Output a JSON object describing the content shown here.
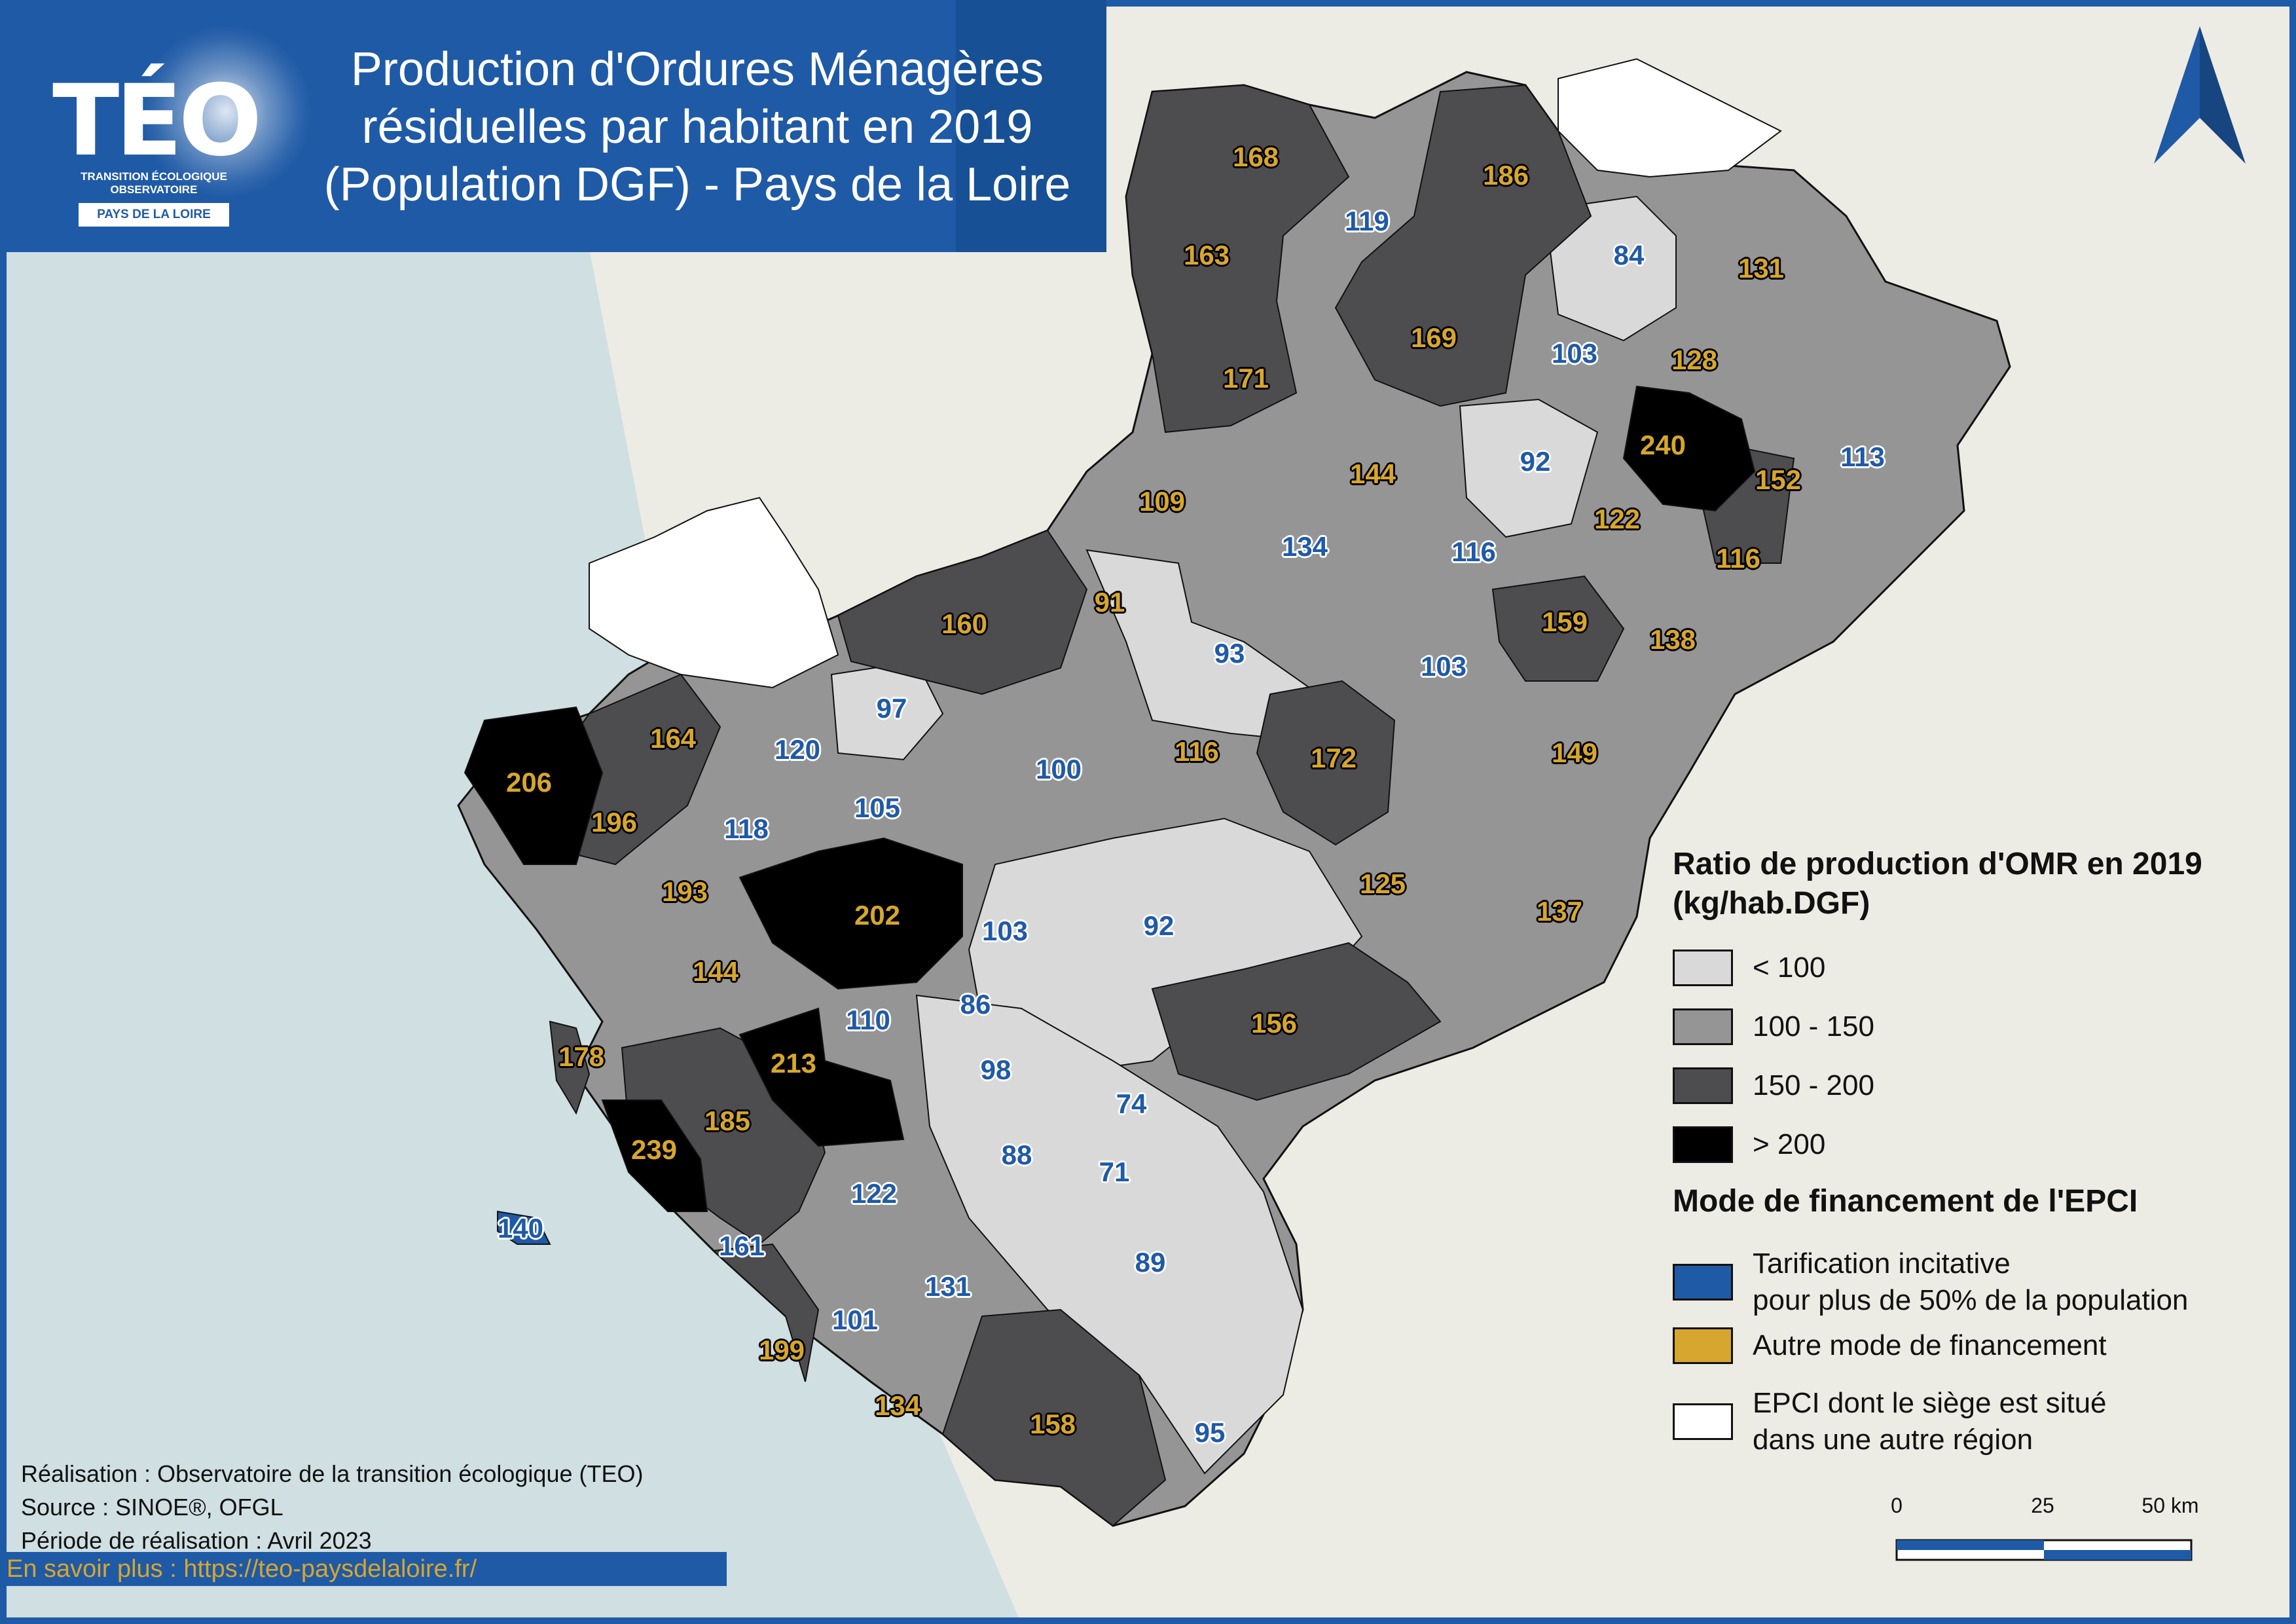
{
  "title": {
    "line1": "Production d'Ordures Ménagères",
    "line2": "résiduelles par habitant en 2019",
    "line3": "(Population DGF) - Pays de la Loire"
  },
  "logo": {
    "name": "TÉO",
    "subtitle_line1": "TRANSITION ÉCOLOGIQUE",
    "subtitle_line2": "OBSERVATOIRE",
    "region": "PAYS DE LA LOIRE"
  },
  "north_arrow_icon": "north-arrow-icon",
  "legend": {
    "ratio_title_line1": "Ratio de production d'OMR en 2019",
    "ratio_title_line2": "(kg/hab.DGF)",
    "classes": [
      {
        "label": "< 100",
        "color": "#d9d9d9"
      },
      {
        "label": "100 - 150",
        "color": "#959595"
      },
      {
        "label": "150 - 200",
        "color": "#4d4d4f"
      },
      {
        "label": "> 200",
        "color": "#000000"
      }
    ],
    "mode_title": "Mode de financement de l'EPCI",
    "modes": [
      {
        "line1": "Tarification incitative",
        "line2": "pour plus de 50% de la population",
        "color": "#1f5aa6"
      },
      {
        "line1": "Autre mode de financement",
        "line2": "",
        "color": "#d7a62e"
      },
      {
        "line1": "EPCI dont le siège est situé",
        "line2": "dans une autre région",
        "color": "#ffffff"
      }
    ]
  },
  "map_values": [
    {
      "value": "168",
      "mode": "autre"
    },
    {
      "value": "186",
      "mode": "autre"
    },
    {
      "value": "119",
      "mode": "incitative"
    },
    {
      "value": "163",
      "mode": "autre"
    },
    {
      "value": "84",
      "mode": "incitative"
    },
    {
      "value": "131",
      "mode": "autre"
    },
    {
      "value": "169",
      "mode": "autre"
    },
    {
      "value": "171",
      "mode": "autre"
    },
    {
      "value": "103",
      "mode": "incitative"
    },
    {
      "value": "128",
      "mode": "autre"
    },
    {
      "value": "240",
      "mode": "autre"
    },
    {
      "value": "92",
      "mode": "incitative"
    },
    {
      "value": "113",
      "mode": "incitative"
    },
    {
      "value": "152",
      "mode": "autre"
    },
    {
      "value": "144",
      "mode": "autre"
    },
    {
      "value": "109",
      "mode": "autre"
    },
    {
      "value": "122",
      "mode": "autre"
    },
    {
      "value": "134",
      "mode": "incitative"
    },
    {
      "value": "116",
      "mode": "incitative"
    },
    {
      "value": "116",
      "mode": "autre"
    },
    {
      "value": "91",
      "mode": "autre"
    },
    {
      "value": "160",
      "mode": "autre"
    },
    {
      "value": "159",
      "mode": "autre"
    },
    {
      "value": "138",
      "mode": "autre"
    },
    {
      "value": "93",
      "mode": "incitative"
    },
    {
      "value": "103",
      "mode": "incitative"
    },
    {
      "value": "97",
      "mode": "incitative"
    },
    {
      "value": "164",
      "mode": "autre"
    },
    {
      "value": "120",
      "mode": "incitative"
    },
    {
      "value": "100",
      "mode": "incitative"
    },
    {
      "value": "116",
      "mode": "autre"
    },
    {
      "value": "172",
      "mode": "autre"
    },
    {
      "value": "149",
      "mode": "autre"
    },
    {
      "value": "206",
      "mode": "autre"
    },
    {
      "value": "196",
      "mode": "autre"
    },
    {
      "value": "118",
      "mode": "incitative"
    },
    {
      "value": "105",
      "mode": "incitative"
    },
    {
      "value": "125",
      "mode": "autre"
    },
    {
      "value": "193",
      "mode": "autre"
    },
    {
      "value": "202",
      "mode": "autre"
    },
    {
      "value": "103",
      "mode": "incitative"
    },
    {
      "value": "92",
      "mode": "incitative"
    },
    {
      "value": "137",
      "mode": "autre"
    },
    {
      "value": "144",
      "mode": "autre"
    },
    {
      "value": "86",
      "mode": "incitative"
    },
    {
      "value": "110",
      "mode": "incitative"
    },
    {
      "value": "156",
      "mode": "autre"
    },
    {
      "value": "178",
      "mode": "autre"
    },
    {
      "value": "213",
      "mode": "autre"
    },
    {
      "value": "98",
      "mode": "incitative"
    },
    {
      "value": "74",
      "mode": "incitative"
    },
    {
      "value": "185",
      "mode": "autre"
    },
    {
      "value": "239",
      "mode": "autre"
    },
    {
      "value": "88",
      "mode": "incitative"
    },
    {
      "value": "71",
      "mode": "incitative"
    },
    {
      "value": "122",
      "mode": "incitative"
    },
    {
      "value": "140",
      "mode": "incitative"
    },
    {
      "value": "161",
      "mode": "incitative"
    },
    {
      "value": "89",
      "mode": "incitative"
    },
    {
      "value": "131",
      "mode": "incitative"
    },
    {
      "value": "101",
      "mode": "incitative"
    },
    {
      "value": "199",
      "mode": "autre"
    },
    {
      "value": "134",
      "mode": "autre"
    },
    {
      "value": "158",
      "mode": "autre"
    },
    {
      "value": "95",
      "mode": "incitative"
    }
  ],
  "credits": {
    "line1": "Réalisation : Observatoire de la transition écologique (TEO)",
    "line2": "Source : SINOE®, OFGL",
    "line3": "Période de réalisation : Avril 2023"
  },
  "more_link": "En savoir plus : https://teo-paysdelaloire.fr/",
  "scale": {
    "t0": "0",
    "t1": "25",
    "t2": "50 km"
  },
  "colors": {
    "brand_blue": "#1f5aa6",
    "gold": "#d7a62e",
    "sea": "#cfdfe2",
    "land": "#ecebe4"
  }
}
